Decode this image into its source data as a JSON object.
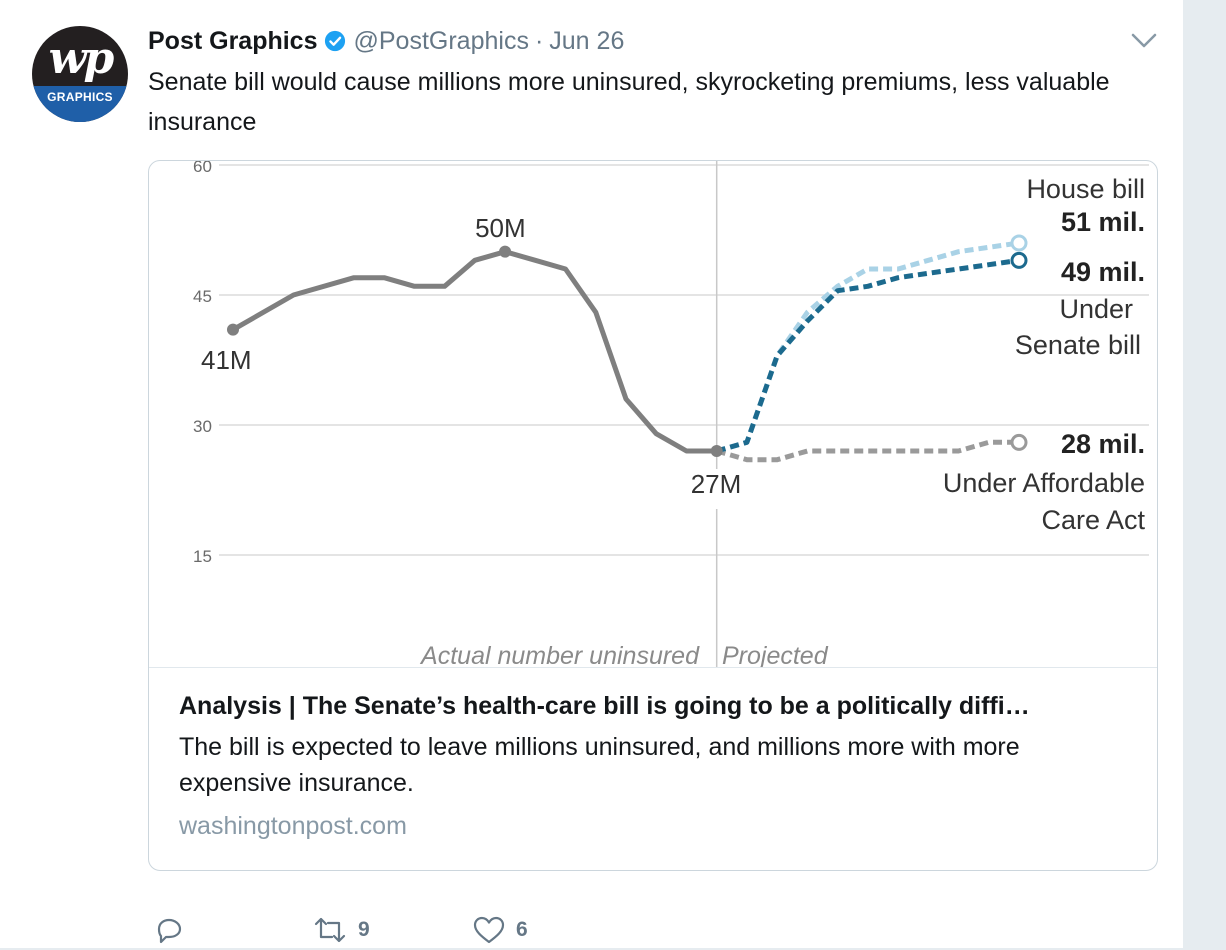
{
  "tweet": {
    "author_name": "Post Graphics",
    "handle": "@PostGraphics",
    "separator": "·",
    "date": "Jun 26",
    "text": "Senate bill would cause millions more uninsured, skyrocketing premiums, less valuable insurance",
    "avatar": {
      "logo_text": "wp",
      "badge_text": "GRAPHICS",
      "band_color": "#1f5fa8"
    }
  },
  "card": {
    "title": "Analysis | The Senate’s health-care bill is going to be a politically diffi…",
    "description": "The bill is expected to leave millions uninsured, and millions more with more expensive insurance.",
    "domain": "washingtonpost.com"
  },
  "actions": {
    "reply": {
      "icon": "reply-icon"
    },
    "retweet": {
      "icon": "retweet-icon",
      "count": "9"
    },
    "like": {
      "icon": "heart-icon",
      "count": "6"
    }
  },
  "colors": {
    "verified": "#1da1f2",
    "actual_line": "#7f7f7f",
    "senate_line": "#1c6a8e",
    "house_line": "#a9d2e6",
    "aca_line": "#9a9a9a"
  },
  "chart_data": {
    "type": "line",
    "ylim": [
      9,
      60
    ],
    "yticks": [
      {
        "value": 60,
        "label": "60"
      },
      {
        "value": 45,
        "label": "45"
      },
      {
        "value": 30,
        "label": "30"
      },
      {
        "value": 15,
        "label": "15"
      }
    ],
    "grid": true,
    "x_range": [
      2000,
      2026
    ],
    "divider_x": 2016,
    "series": [
      {
        "key": "actual",
        "style": "solid",
        "color": "#7f7f7f",
        "x": [
          2000,
          2002,
          2004,
          2005,
          2006,
          2007,
          2008,
          2009,
          2010,
          2011,
          2012,
          2013,
          2014,
          2015,
          2016
        ],
        "values": [
          41,
          45,
          47,
          47,
          46,
          46,
          49,
          50,
          49,
          48,
          43,
          33,
          29,
          27,
          27
        ]
      },
      {
        "key": "house",
        "style": "dashed",
        "color": "#a9d2e6",
        "x": [
          2016,
          2017,
          2018,
          2019,
          2020,
          2021,
          2022,
          2023,
          2024,
          2025,
          2026
        ],
        "values": [
          27,
          28,
          38,
          43,
          46,
          48,
          48,
          49,
          50,
          50.5,
          51
        ]
      },
      {
        "key": "senate",
        "style": "dashed",
        "color": "#1c6a8e",
        "x": [
          2016,
          2017,
          2018,
          2019,
          2020,
          2021,
          2022,
          2023,
          2024,
          2025,
          2026
        ],
        "values": [
          27,
          28,
          38,
          42,
          45.5,
          46,
          47,
          47.5,
          48,
          48.5,
          49
        ]
      },
      {
        "key": "aca",
        "style": "dashed",
        "color": "#9a9a9a",
        "x": [
          2016,
          2017,
          2018,
          2019,
          2020,
          2021,
          2022,
          2023,
          2024,
          2025,
          2026
        ],
        "values": [
          27,
          26,
          26,
          27,
          27,
          27,
          27,
          27,
          27,
          28,
          28
        ]
      }
    ],
    "annotations": {
      "start": "41M",
      "peak": "50M",
      "low": "27M",
      "actual_label": "Actual number uninsured",
      "projected_label": "Projected",
      "house_name_clipped": "Under",
      "house_name": "House bill",
      "house_value": "51 mil.",
      "senate_value": "49 mil.",
      "senate_name_line1": "Under",
      "senate_name_line2": "Senate bill",
      "aca_value": "28 mil.",
      "aca_name_line1": "Under Affordable",
      "aca_name_line2": "Care Act"
    }
  }
}
